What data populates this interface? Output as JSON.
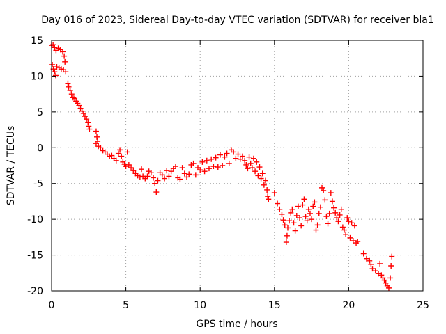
{
  "chart_data": {
    "type": "scatter",
    "title": "Day 016 of 2023, Sidereal Day-to-day VTEC variation (SDTVAR) for receiver bla1",
    "xlabel": "GPS time / hours",
    "ylabel": "SDTVAR / TECUs",
    "xlim": [
      0,
      25
    ],
    "ylim": [
      -20,
      15
    ],
    "grid": true,
    "marker": "plus",
    "series_color": "#ff0000",
    "x_ticks": [
      0,
      5,
      10,
      15,
      20,
      25
    ],
    "x_tick_labels": [
      "0",
      "5",
      "10",
      "15",
      "20",
      "25"
    ],
    "y_ticks": [
      15,
      10,
      5,
      0,
      -5,
      -10,
      -15,
      -20
    ],
    "y_tick_labels": [
      "15",
      "10",
      "5",
      "0",
      "-5",
      "-10",
      "-15",
      "-20"
    ],
    "series": [
      {
        "name": "SDTVAR",
        "points": [
          [
            0.0,
            14.3
          ],
          [
            0.1,
            14.4
          ],
          [
            0.2,
            14.0
          ],
          [
            0.3,
            13.6
          ],
          [
            0.45,
            13.9
          ],
          [
            0.6,
            13.7
          ],
          [
            0.75,
            13.4
          ],
          [
            0.85,
            12.8
          ],
          [
            0.9,
            12.0
          ],
          [
            0.05,
            11.6
          ],
          [
            0.12,
            11.0
          ],
          [
            0.2,
            10.6
          ],
          [
            0.28,
            10.1
          ],
          [
            0.35,
            11.3
          ],
          [
            0.5,
            11.2
          ],
          [
            0.65,
            11.0
          ],
          [
            0.8,
            10.9
          ],
          [
            0.95,
            10.6
          ],
          [
            1.1,
            9.0
          ],
          [
            1.15,
            8.5
          ],
          [
            1.25,
            8.0
          ],
          [
            1.35,
            7.5
          ],
          [
            1.45,
            7.0
          ],
          [
            1.55,
            6.9
          ],
          [
            1.65,
            6.5
          ],
          [
            1.75,
            6.2
          ],
          [
            1.85,
            5.9
          ],
          [
            1.95,
            5.5
          ],
          [
            2.05,
            5.1
          ],
          [
            2.15,
            4.8
          ],
          [
            2.25,
            4.4
          ],
          [
            2.35,
            4.0
          ],
          [
            2.45,
            3.5
          ],
          [
            2.5,
            3.0
          ],
          [
            2.55,
            2.6
          ],
          [
            3.0,
            2.3
          ],
          [
            3.05,
            1.5
          ],
          [
            3.1,
            0.9
          ],
          [
            3.0,
            0.6
          ],
          [
            3.15,
            0.2
          ],
          [
            3.3,
            0.0
          ],
          [
            3.45,
            -0.4
          ],
          [
            3.6,
            -0.6
          ],
          [
            3.75,
            -0.9
          ],
          [
            3.9,
            -1.2
          ],
          [
            4.05,
            -1.1
          ],
          [
            4.2,
            -1.5
          ],
          [
            4.35,
            -1.8
          ],
          [
            4.5,
            -0.8
          ],
          [
            4.6,
            -0.3
          ],
          [
            4.7,
            -1.2
          ],
          [
            4.8,
            -2.0
          ],
          [
            4.9,
            -2.3
          ],
          [
            5.0,
            -2.6
          ],
          [
            5.1,
            -0.6
          ],
          [
            5.2,
            -2.4
          ],
          [
            5.35,
            -2.8
          ],
          [
            5.5,
            -3.2
          ],
          [
            5.65,
            -3.6
          ],
          [
            5.8,
            -3.9
          ],
          [
            5.95,
            -4.1
          ],
          [
            6.05,
            -3.0
          ],
          [
            6.15,
            -4.0
          ],
          [
            6.3,
            -4.3
          ],
          [
            6.45,
            -4.0
          ],
          [
            6.55,
            -3.3
          ],
          [
            6.7,
            -3.5
          ],
          [
            6.85,
            -4.2
          ],
          [
            6.95,
            -5.0
          ],
          [
            7.05,
            -6.2
          ],
          [
            7.15,
            -4.6
          ],
          [
            7.3,
            -3.5
          ],
          [
            7.45,
            -3.8
          ],
          [
            7.6,
            -4.3
          ],
          [
            7.75,
            -3.2
          ],
          [
            7.9,
            -4.0
          ],
          [
            8.05,
            -3.3
          ],
          [
            8.2,
            -2.9
          ],
          [
            8.35,
            -2.6
          ],
          [
            8.5,
            -4.2
          ],
          [
            8.65,
            -4.4
          ],
          [
            8.8,
            -2.8
          ],
          [
            8.95,
            -3.6
          ],
          [
            9.1,
            -4.1
          ],
          [
            9.25,
            -3.7
          ],
          [
            9.4,
            -2.4
          ],
          [
            9.55,
            -2.2
          ],
          [
            9.7,
            -3.8
          ],
          [
            9.85,
            -2.8
          ],
          [
            10.0,
            -3.1
          ],
          [
            10.15,
            -2.0
          ],
          [
            10.3,
            -3.3
          ],
          [
            10.45,
            -1.8
          ],
          [
            10.6,
            -2.9
          ],
          [
            10.75,
            -1.6
          ],
          [
            10.9,
            -2.6
          ],
          [
            11.05,
            -1.4
          ],
          [
            11.2,
            -2.7
          ],
          [
            11.35,
            -1.0
          ],
          [
            11.5,
            -2.5
          ],
          [
            11.65,
            -1.3
          ],
          [
            11.8,
            -0.8
          ],
          [
            11.95,
            -2.2
          ],
          [
            12.1,
            -0.3
          ],
          [
            12.25,
            -0.6
          ],
          [
            12.4,
            -1.5
          ],
          [
            12.55,
            -0.9
          ],
          [
            12.7,
            -1.6
          ],
          [
            12.85,
            -1.2
          ],
          [
            13.0,
            -1.8
          ],
          [
            13.1,
            -2.4
          ],
          [
            13.2,
            -2.9
          ],
          [
            13.3,
            -1.3
          ],
          [
            13.4,
            -2.2
          ],
          [
            13.5,
            -2.8
          ],
          [
            13.6,
            -1.5
          ],
          [
            13.7,
            -3.3
          ],
          [
            13.8,
            -2.0
          ],
          [
            13.9,
            -3.9
          ],
          [
            14.0,
            -2.7
          ],
          [
            14.1,
            -4.3
          ],
          [
            14.2,
            -3.6
          ],
          [
            14.3,
            -5.2
          ],
          [
            14.4,
            -4.6
          ],
          [
            14.5,
            -5.9
          ],
          [
            14.55,
            -6.8
          ],
          [
            14.6,
            -7.2
          ],
          [
            15.0,
            -6.3
          ],
          [
            15.2,
            -7.8
          ],
          [
            15.35,
            -8.6
          ],
          [
            15.5,
            -9.3
          ],
          [
            15.6,
            -10.1
          ],
          [
            15.7,
            -10.8
          ],
          [
            15.8,
            -13.2
          ],
          [
            15.85,
            -12.3
          ],
          [
            15.9,
            -11.2
          ],
          [
            16.0,
            -10.2
          ],
          [
            16.1,
            -9.1
          ],
          [
            16.2,
            -8.6
          ],
          [
            16.3,
            -10.5
          ],
          [
            16.4,
            -11.6
          ],
          [
            16.5,
            -9.5
          ],
          [
            16.6,
            -8.2
          ],
          [
            16.7,
            -9.8
          ],
          [
            16.8,
            -10.9
          ],
          [
            16.9,
            -8.0
          ],
          [
            17.0,
            -7.2
          ],
          [
            17.1,
            -9.6
          ],
          [
            17.2,
            -10.2
          ],
          [
            17.3,
            -8.6
          ],
          [
            17.4,
            -9.2
          ],
          [
            17.5,
            -10.0
          ],
          [
            17.6,
            -8.2
          ],
          [
            17.7,
            -7.6
          ],
          [
            17.8,
            -11.5
          ],
          [
            17.9,
            -10.8
          ],
          [
            18.0,
            -9.2
          ],
          [
            18.1,
            -8.3
          ],
          [
            18.2,
            -5.6
          ],
          [
            18.3,
            -6.0
          ],
          [
            18.4,
            -7.3
          ],
          [
            18.5,
            -9.6
          ],
          [
            18.6,
            -10.6
          ],
          [
            18.7,
            -9.2
          ],
          [
            18.8,
            -6.3
          ],
          [
            18.9,
            -7.5
          ],
          [
            19.0,
            -8.4
          ],
          [
            19.1,
            -9.1
          ],
          [
            19.2,
            -9.8
          ],
          [
            19.3,
            -10.3
          ],
          [
            19.4,
            -9.4
          ],
          [
            19.5,
            -8.6
          ],
          [
            19.6,
            -11.1
          ],
          [
            19.7,
            -11.5
          ],
          [
            19.8,
            -12.1
          ],
          [
            19.9,
            -9.8
          ],
          [
            20.0,
            -10.3
          ],
          [
            20.1,
            -12.6
          ],
          [
            20.2,
            -10.5
          ],
          [
            20.3,
            -13.0
          ],
          [
            20.4,
            -10.9
          ],
          [
            20.5,
            -13.3
          ],
          [
            20.6,
            -13.1
          ],
          [
            21.0,
            -14.8
          ],
          [
            21.2,
            -15.5
          ],
          [
            21.4,
            -15.8
          ],
          [
            21.5,
            -16.3
          ],
          [
            21.6,
            -16.9
          ],
          [
            21.8,
            -17.2
          ],
          [
            22.0,
            -17.6
          ],
          [
            22.1,
            -16.2
          ],
          [
            22.2,
            -17.8
          ],
          [
            22.3,
            -18.2
          ],
          [
            22.4,
            -18.5
          ],
          [
            22.5,
            -18.9
          ],
          [
            22.6,
            -19.3
          ],
          [
            22.7,
            -19.6
          ],
          [
            22.8,
            -18.2
          ],
          [
            22.85,
            -16.5
          ],
          [
            22.9,
            -15.2
          ]
        ]
      }
    ]
  }
}
